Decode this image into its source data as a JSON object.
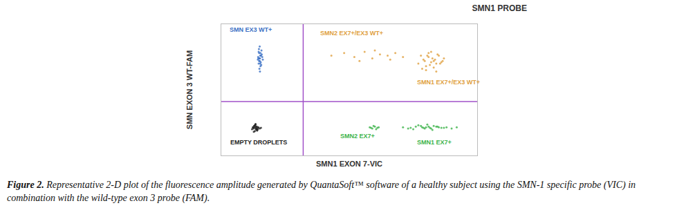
{
  "chart_data": {
    "type": "scatter",
    "title": "SMN1 PROBE",
    "x_label": "SMN1 EXON 7-VIC",
    "y_label": "SMN EXON 3 WT-FAM",
    "xlim": [
      0,
      10000
    ],
    "ylim": [
      0,
      10000
    ],
    "tick_labels": false,
    "grid": false,
    "thresholds": {
      "x": 3200,
      "y": 4100
    },
    "series": [
      {
        "name": "EMPTY DROPLETS",
        "color": "#222222",
        "label_x": 300,
        "label_y": 1000,
        "x": [
          1200,
          1300,
          1350,
          1400,
          1250,
          1450,
          1320,
          1380,
          1280,
          1420,
          1360,
          1310,
          1500,
          1230,
          1340,
          1390,
          1270,
          1430,
          1350,
          1300,
          1410,
          1260,
          1370,
          1330,
          1550
        ],
        "values": [
          2000,
          2100,
          2200,
          1900,
          2050,
          2150,
          2300,
          1950,
          2250,
          2000,
          2100,
          1850,
          2050,
          2150,
          2400,
          2200,
          1800,
          2100,
          2000,
          2250,
          1950,
          2150,
          2050,
          2350,
          2100
        ]
      },
      {
        "name": "SMN EX3 WT+",
        "color": "#3a6fc4",
        "label_x": 270,
        "label_y": 9600,
        "x": [
          1450,
          1500,
          1550,
          1480,
          1520,
          1600,
          1430,
          1470,
          1530,
          1580,
          1510,
          1490,
          1460,
          1540,
          1620,
          1500,
          1440,
          1560,
          1520,
          1480,
          1570,
          1510,
          1460,
          1530,
          1490
        ],
        "values": [
          7400,
          7200,
          7600,
          7800,
          7000,
          7500,
          7300,
          8100,
          6800,
          7700,
          7400,
          6600,
          7900,
          7100,
          7300,
          8300,
          7500,
          6900,
          7600,
          7200,
          8000,
          6400,
          7000,
          7800,
          7400
        ]
      },
      {
        "name": "SMN2 EX7+",
        "color": "#3cb34a",
        "label_x": 4600,
        "label_y": 1500,
        "x": [
          5800,
          5900,
          6000,
          6100,
          5950,
          6050,
          5850,
          6150
        ],
        "values": [
          2150,
          2050,
          2200,
          2100,
          2250,
          2000,
          2100,
          2150
        ]
      },
      {
        "name": "SMN1 EX7+",
        "color": "#3cb34a",
        "label_x": 7600,
        "label_y": 1000,
        "x": [
          7100,
          7400,
          7600,
          7800,
          8000,
          8200,
          8400,
          8600,
          8800,
          9000,
          7500,
          7700,
          7900,
          8100,
          8300,
          8500,
          8700,
          7300,
          7850,
          8050,
          8250,
          8450,
          7950,
          8150,
          9200
        ],
        "values": [
          2150,
          2100,
          2200,
          2250,
          2150,
          2050,
          2200,
          2100,
          2150,
          2050,
          2000,
          2300,
          2100,
          2200,
          2250,
          2150,
          2100,
          2050,
          2150,
          2350,
          1950,
          2200,
          2050,
          2100,
          2150
        ]
      },
      {
        "name": "SMN2 EX7+/EX3 WT+",
        "color": "#e0a040",
        "label_x": 3800,
        "label_y": 9300,
        "x": [
          4300,
          4800,
          5200,
          5600,
          5900,
          6200,
          6500,
          6800,
          5400,
          6000,
          6600,
          7100
        ],
        "values": [
          7600,
          7800,
          7500,
          7900,
          7400,
          7700,
          7600,
          7800,
          7200,
          8000,
          7300,
          7500
        ]
      },
      {
        "name": "SMN1 EX7+/EX3 WT+",
        "color": "#e0a040",
        "label_x": 7600,
        "label_y": 5600,
        "x": [
          7700,
          7900,
          8100,
          8300,
          8500,
          8700,
          8000,
          8200,
          8400,
          7800,
          8600,
          8100,
          8300,
          7950,
          8150,
          8350,
          8550,
          8050,
          8250,
          8450,
          7850,
          8650,
          8200,
          8000,
          8400
        ],
        "values": [
          7000,
          7300,
          7500,
          7200,
          7600,
          7400,
          6800,
          7100,
          7000,
          7600,
          7100,
          7800,
          6700,
          7200,
          6900,
          7300,
          7000,
          7600,
          7400,
          7700,
          6600,
          7200,
          7900,
          6500,
          6400
        ]
      }
    ],
    "caption": {
      "label": "Figure 2.",
      "text": "Representative 2-D plot of the fluorescence amplitude generated by QuantaSoft™ software of a healthy subject using the SMN-1 specific probe (VIC) in combination with the wild-type exon 3 probe (FAM)."
    }
  }
}
